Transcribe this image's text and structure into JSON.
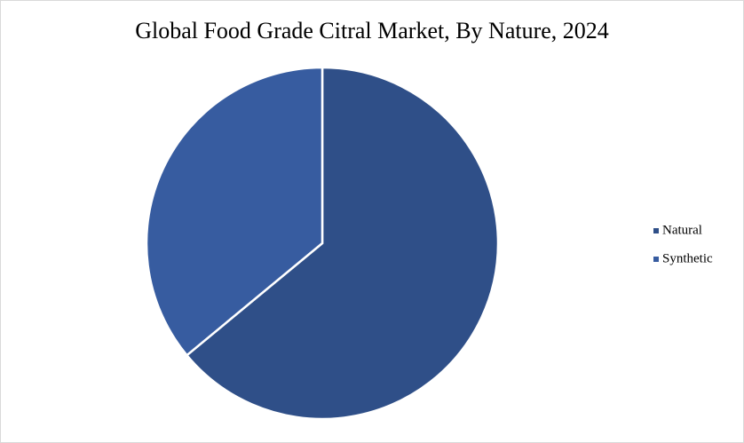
{
  "chart_data": {
    "type": "pie",
    "title": "Global Food Grade Citral Market, By Nature, 2024",
    "categories": [
      "Natural",
      "Synthetic"
    ],
    "values": [
      64,
      36
    ],
    "colors": [
      "#2f4f88",
      "#375ca0"
    ],
    "legend": "right"
  }
}
